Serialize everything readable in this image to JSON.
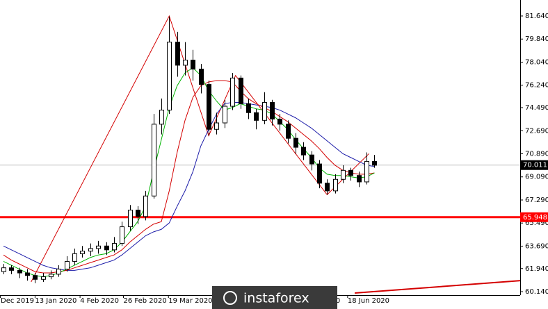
{
  "chart_data": {
    "type": "candlestick",
    "xlim": [
      -0.44,
      65.46
    ],
    "xticks": [
      {
        "value": -0.4,
        "label": "Dec 2019"
      },
      {
        "value": 4,
        "label": "13 Jan 2020"
      },
      {
        "value": 9.7,
        "label": "4 Feb 2020"
      },
      {
        "value": 15.2,
        "label": "26 Feb 2020"
      },
      {
        "value": 20.9,
        "label": "19 Mar 2020"
      },
      {
        "value": 42.1,
        "label": "0"
      },
      {
        "value": 43.6,
        "label": "18 Jun 2020"
      }
    ],
    "ylim": [
      59.87,
      82.886
    ],
    "yticks": [
      {
        "value": 81.64,
        "label": "81.640"
      },
      {
        "value": 79.84,
        "label": "79.840"
      },
      {
        "value": 78.04,
        "label": "78.040"
      },
      {
        "value": 76.24,
        "label": "76.240"
      },
      {
        "value": 74.49,
        "label": "74.490"
      },
      {
        "value": 72.69,
        "label": "72.690"
      },
      {
        "value": 70.89,
        "label": "70.890"
      },
      {
        "value": 69.09,
        "label": "69.090"
      },
      {
        "value": 67.29,
        "label": "67.290"
      },
      {
        "value": 65.49,
        "label": "65.490"
      },
      {
        "value": 63.69,
        "label": "63.690"
      },
      {
        "value": 61.94,
        "label": "61.940"
      },
      {
        "value": 60.14,
        "label": "60.140"
      }
    ],
    "open": [
      61.7,
      62.0,
      61.8,
      61.6,
      61.4,
      61.1,
      61.3,
      61.5,
      61.9,
      62.5,
      63.1,
      63.3,
      63.5,
      63.7,
      63.4,
      63.9,
      65.2,
      66.5,
      66.0,
      67.6,
      73.2,
      74.3,
      79.6,
      77.8,
      78.2,
      77.5,
      76.3,
      72.8,
      73.3,
      74.6,
      76.8,
      74.8,
      74.1,
      73.5,
      74.9,
      73.6,
      73.2,
      72.1,
      71.4,
      70.8,
      70.1,
      68.6,
      68.0,
      68.9,
      69.6,
      69.2,
      68.7,
      70.3
    ],
    "high": [
      62.3,
      62.2,
      62.0,
      61.9,
      61.6,
      61.6,
      61.8,
      62.2,
      62.9,
      63.5,
      63.7,
      63.9,
      64.1,
      64.0,
      64.4,
      65.6,
      66.9,
      66.8,
      68.0,
      74.0,
      75.2,
      81.6,
      80.4,
      79.6,
      79.0,
      77.9,
      76.6,
      74.1,
      75.1,
      77.2,
      77.0,
      75.2,
      74.4,
      75.7,
      75.1,
      74.0,
      73.5,
      72.5,
      71.8,
      71.1,
      70.4,
      68.9,
      69.3,
      70.0,
      69.8,
      69.5,
      71.0,
      70.8
    ],
    "low": [
      61.5,
      61.5,
      61.2,
      61.0,
      60.8,
      60.9,
      61.1,
      61.3,
      61.7,
      62.2,
      62.8,
      62.9,
      63.1,
      63.0,
      63.2,
      63.7,
      64.9,
      65.4,
      65.7,
      67.4,
      72.4,
      74.0,
      76.9,
      77.0,
      76.6,
      75.6,
      72.3,
      72.4,
      72.9,
      74.3,
      74.4,
      73.6,
      72.8,
      73.2,
      73.1,
      72.7,
      71.7,
      70.9,
      70.4,
      69.6,
      68.2,
      67.7,
      67.8,
      68.6,
      68.8,
      68.3,
      68.5,
      69.8
    ],
    "close": [
      62.0,
      61.8,
      61.6,
      61.4,
      61.1,
      61.3,
      61.5,
      61.9,
      62.5,
      63.1,
      63.3,
      63.5,
      63.7,
      63.4,
      63.9,
      65.2,
      66.5,
      66.0,
      67.6,
      73.2,
      74.3,
      79.6,
      77.8,
      78.2,
      77.5,
      76.3,
      72.8,
      73.3,
      74.6,
      76.8,
      74.8,
      74.1,
      73.5,
      74.9,
      73.6,
      73.2,
      72.1,
      71.4,
      70.8,
      70.1,
      68.6,
      68.0,
      68.9,
      69.6,
      69.2,
      68.7,
      70.3,
      70.0
    ],
    "up_color": "#ffffff",
    "down_color": "#000000",
    "series": [
      {
        "color": "#1a1aa8",
        "values": [
          63.7,
          63.4,
          63.1,
          62.8,
          62.5,
          62.2,
          62.0,
          61.9,
          61.8,
          61.8,
          61.9,
          62.0,
          62.2,
          62.4,
          62.6,
          63.0,
          63.5,
          64.0,
          64.5,
          64.8,
          65.0,
          65.5,
          66.8,
          68.0,
          69.5,
          71.5,
          72.8,
          74.0,
          74.8,
          74.9,
          74.9,
          74.8,
          74.7,
          74.6,
          74.5,
          74.3,
          74.0,
          73.7,
          73.3,
          72.9,
          72.4,
          71.9,
          71.4,
          70.9,
          70.6,
          70.3,
          70.0,
          69.9
        ]
      },
      {
        "color": "#d40000",
        "values": [
          63.0,
          62.6,
          62.3,
          62.0,
          61.7,
          61.6,
          61.6,
          61.7,
          61.8,
          62.0,
          62.2,
          62.4,
          62.6,
          62.8,
          63.0,
          63.4,
          64.0,
          64.5,
          65.0,
          65.4,
          65.6,
          68.0,
          71.0,
          73.5,
          75.3,
          76.2,
          76.5,
          76.6,
          76.6,
          76.5,
          75.8,
          75.2,
          74.8,
          74.5,
          74.2,
          73.8,
          73.4,
          72.9,
          72.4,
          71.9,
          71.3,
          70.6,
          70.0,
          69.6,
          69.4,
          69.3,
          69.3,
          69.4
        ]
      },
      {
        "color": "#00b400",
        "values": [
          62.5,
          62.2,
          61.9,
          61.6,
          61.4,
          61.3,
          61.4,
          61.6,
          61.9,
          62.2,
          62.5,
          62.8,
          63.0,
          63.1,
          63.4,
          64.0,
          64.8,
          65.6,
          66.8,
          69.5,
          72.0,
          74.5,
          76.2,
          77.2,
          77.6,
          77.0,
          75.8,
          75.0,
          74.3,
          74.5,
          74.8,
          74.6,
          74.4,
          74.3,
          74.0,
          73.4,
          72.8,
          72.0,
          71.3,
          70.6,
          69.8,
          69.3,
          69.2,
          69.2,
          69.1,
          69.0,
          69.1,
          69.4
        ]
      }
    ],
    "zigzag": {
      "color": "#d40000",
      "x": [
        3.5,
        21,
        26,
        29.4,
        41,
        46.3
      ],
      "values": [
        60.9,
        81.64,
        72.3,
        77.0,
        67.7,
        70.9
      ]
    },
    "trendline": {
      "color": "#d40000",
      "x": [
        44.5,
        65.5
      ],
      "values": [
        60.03,
        61.0
      ]
    },
    "level": {
      "value": 65.948,
      "label": "65.948",
      "color": "#ff0000"
    },
    "current_price": {
      "value": 70.011,
      "label": "70.011",
      "color": "#000000"
    }
  },
  "watermark": "instaforex"
}
